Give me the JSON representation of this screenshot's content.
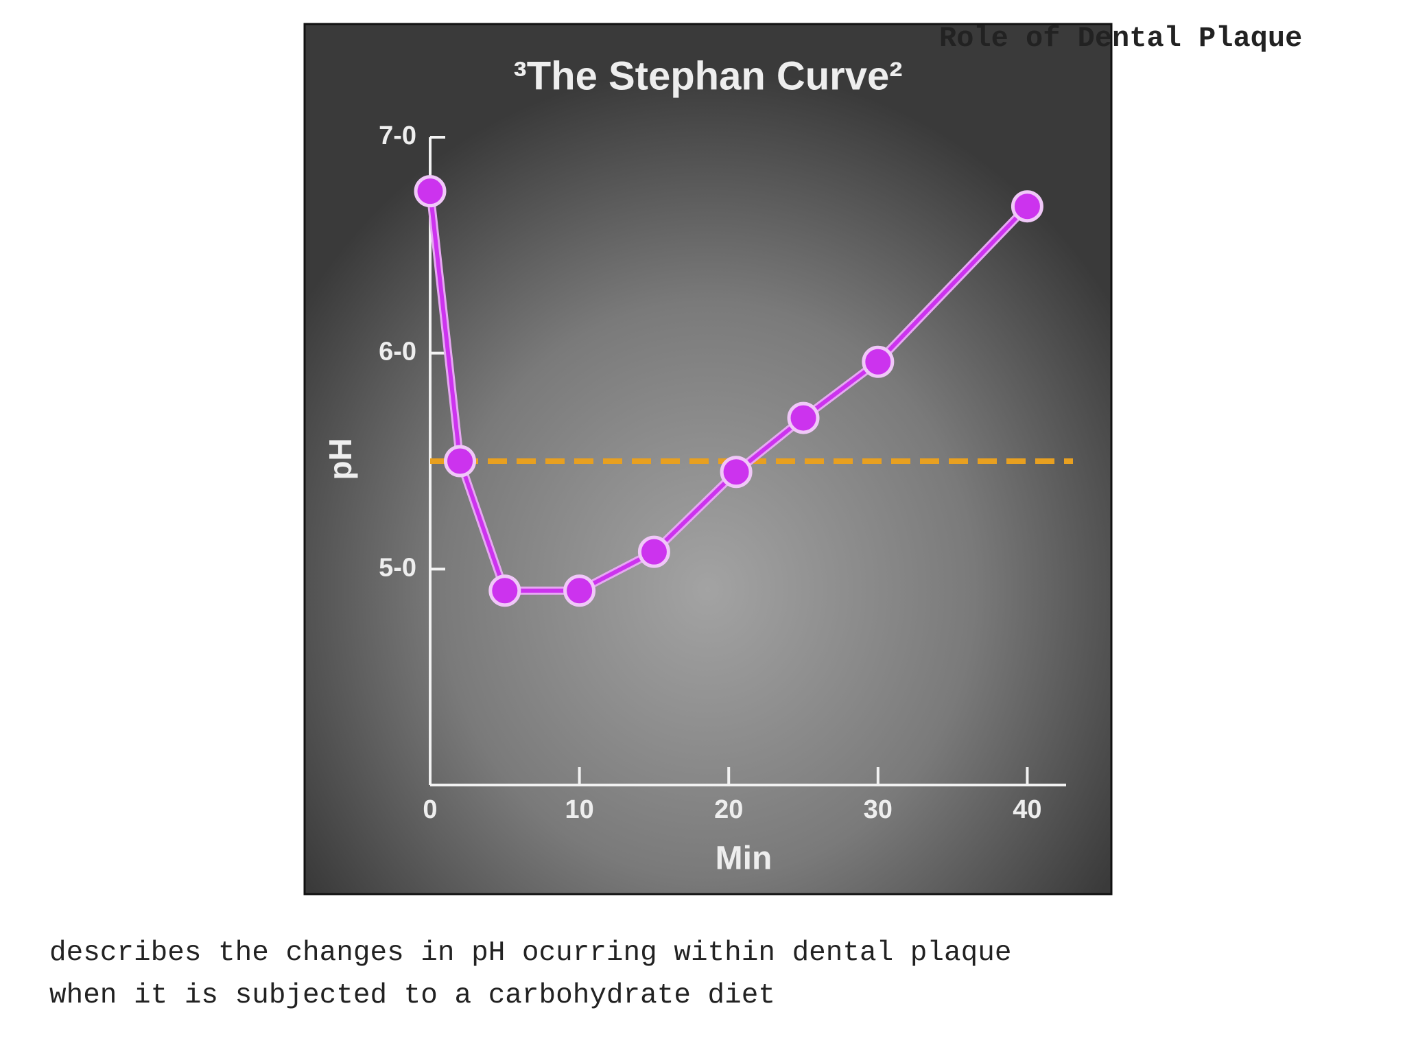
{
  "slide_title": "Role of Dental Plaque",
  "caption": [
    "describes the changes in pH ocurring within dental plaque",
    "when it is subjected to a carbohydrate diet"
  ],
  "chart_data": {
    "type": "line",
    "title": "³The Stephan Curve²",
    "x_label": "Min",
    "y_label": "pH",
    "x": [
      0,
      2,
      5,
      10,
      15,
      20.5,
      25,
      30,
      40
    ],
    "series": [
      {
        "color": "#cc33ee",
        "values": [
          6.75,
          5.5,
          4.9,
          4.9,
          5.08,
          5.45,
          5.7,
          5.96,
          6.68
        ]
      }
    ],
    "reference_line": {
      "value": 5.5,
      "color": "#e8a020"
    },
    "xlim": [
      0,
      42.6
    ],
    "xticks": [
      0,
      10,
      20,
      30,
      40
    ],
    "ylim": [
      4,
      7
    ],
    "yticks": [
      {
        "value": 5,
        "label": "5-0"
      },
      {
        "value": 6,
        "label": "6-0"
      },
      {
        "value": 7,
        "label": "7-0"
      }
    ]
  }
}
